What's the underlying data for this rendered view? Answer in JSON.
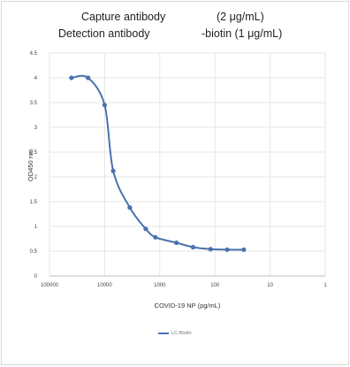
{
  "chart_data": {
    "type": "line",
    "title_lines": [
      [
        "Capture antibody",
        "(2 μg/mL)"
      ],
      [
        "Detection antibody",
        "-biotin (1 μg/mL)"
      ]
    ],
    "xlabel": "COVID-19 NP (pg/mL)",
    "ylabel": "OD450 nm",
    "x_scale": "log",
    "x_reversed": true,
    "xlim": [
      100000,
      1
    ],
    "ylim": [
      0,
      4.5
    ],
    "x_ticks": [
      "100000",
      "10000",
      "1000",
      "100",
      "10",
      "1"
    ],
    "y_ticks": [
      "0",
      "0.5",
      "1",
      "1.5",
      "2",
      "2.5",
      "3",
      "3.5",
      "4",
      "4.5"
    ],
    "grid": true,
    "legend_position": "bottom",
    "series": [
      {
        "name": "LC-Biotin",
        "color": "#4a72ad",
        "points": [
          {
            "x": 40000,
            "y": 4.0
          },
          {
            "x": 20000,
            "y": 4.0
          },
          {
            "x": 10000,
            "y": 3.45
          },
          {
            "x": 7000,
            "y": 2.12
          },
          {
            "x": 3500,
            "y": 1.38
          },
          {
            "x": 1800,
            "y": 0.95
          },
          {
            "x": 1200,
            "y": 0.78
          },
          {
            "x": 500,
            "y": 0.67
          },
          {
            "x": 250,
            "y": 0.58
          },
          {
            "x": 120,
            "y": 0.54
          },
          {
            "x": 60,
            "y": 0.53
          },
          {
            "x": 30,
            "y": 0.53
          }
        ]
      }
    ]
  }
}
